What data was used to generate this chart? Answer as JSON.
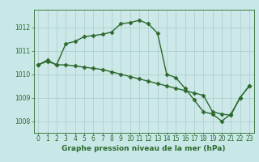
{
  "line1_x": [
    0,
    1,
    2,
    3,
    4,
    5,
    6,
    7,
    8,
    9,
    10,
    11,
    12,
    13,
    14,
    15,
    16,
    17,
    18,
    19,
    20,
    21,
    22,
    23
  ],
  "line1_y": [
    1010.4,
    1010.6,
    1010.4,
    1011.3,
    1011.4,
    1011.6,
    1011.65,
    1011.7,
    1011.8,
    1012.15,
    1012.2,
    1012.3,
    1012.15,
    1011.75,
    1010.0,
    1009.85,
    1009.4,
    1008.9,
    1008.4,
    1008.3,
    1008.0,
    1008.3,
    1009.0,
    1009.5
  ],
  "line2_x": [
    0,
    1,
    2,
    3,
    4,
    5,
    6,
    7,
    8,
    9,
    10,
    11,
    12,
    13,
    14,
    15,
    16,
    17,
    18,
    19,
    20,
    21,
    22,
    23
  ],
  "line2_y": [
    1010.4,
    1010.55,
    1010.4,
    1010.4,
    1010.35,
    1010.3,
    1010.25,
    1010.2,
    1010.1,
    1010.0,
    1009.9,
    1009.8,
    1009.7,
    1009.6,
    1009.5,
    1009.4,
    1009.3,
    1009.2,
    1009.1,
    1008.4,
    1008.3,
    1008.25,
    1009.0,
    1009.5
  ],
  "line_color": "#2d6a2d",
  "bg_color": "#c8e8e8",
  "plot_bg": "#cce8e8",
  "grid_color": "#aacaca",
  "xlabel": "Graphe pression niveau de la mer (hPa)",
  "xlim": [
    -0.5,
    23.5
  ],
  "ylim": [
    1007.5,
    1012.75
  ],
  "yticks": [
    1008,
    1009,
    1010,
    1011,
    1012
  ],
  "xticks": [
    0,
    1,
    2,
    3,
    4,
    5,
    6,
    7,
    8,
    9,
    10,
    11,
    12,
    13,
    14,
    15,
    16,
    17,
    18,
    19,
    20,
    21,
    22,
    23
  ],
  "marker": "D",
  "markersize": 2.5,
  "linewidth": 1.0,
  "xlabel_fontsize": 6.5,
  "tick_fontsize": 5.5
}
